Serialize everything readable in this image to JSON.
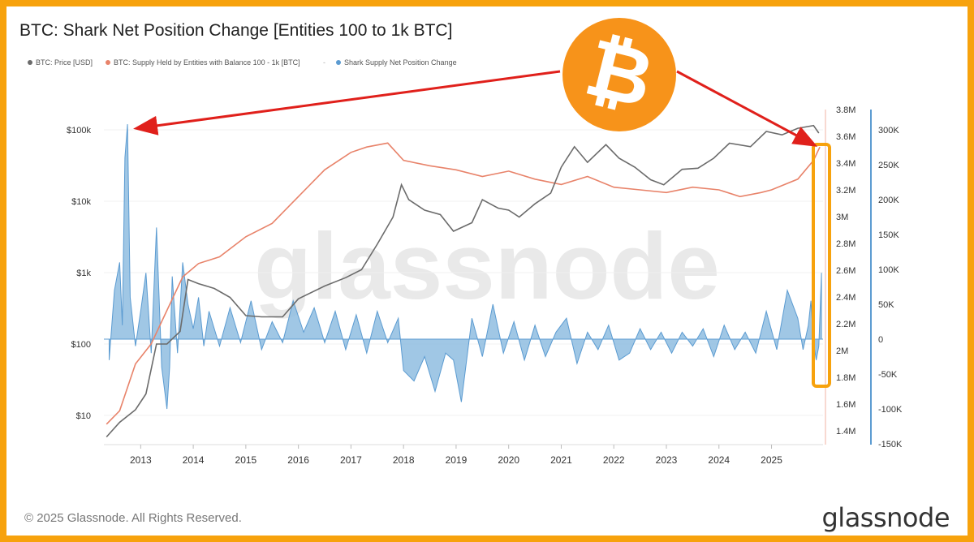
{
  "title": "BTC: Shark Net Position Change [Entities 100 to 1k BTC]",
  "legend": [
    {
      "label": "BTC: Price [USD]",
      "color": "#6b6b6b"
    },
    {
      "label": "BTC: Supply Held by Entities with Balance 100 - 1k [BTC]",
      "color": "#e8836a"
    },
    {
      "label": "-",
      "color": "#aaaaaa"
    },
    {
      "label": "Shark Supply Net Position Change",
      "color": "#5b9bd1"
    }
  ],
  "watermark": "glassnode",
  "footer": {
    "copyright": "© 2025 Glassnode. All Rights Reserved.",
    "brand": "glassnode"
  },
  "colors": {
    "frame": "#f7a20d",
    "price": "#6b6b6b",
    "supply": "#e8836a",
    "netpos": "#5b9bd1",
    "arrow": "#e0201b",
    "highlight": "#f7a20d",
    "coin": "#f7931a"
  },
  "icons": [
    "bitcoin-logo-icon"
  ],
  "chart_data": {
    "type": "line",
    "x_ticks": [
      "2013",
      "2014",
      "2015",
      "2016",
      "2017",
      "2018",
      "2019",
      "2020",
      "2021",
      "2022",
      "2023",
      "2024",
      "2025"
    ],
    "y_left_ticks": [
      "$100k",
      "$10k",
      "$1k",
      "$100",
      "$10"
    ],
    "y_mid_ticks": [
      "3.8M",
      "3.6M",
      "3.4M",
      "3.2M",
      "3M",
      "2.8M",
      "2.6M",
      "2.4M",
      "2.2M",
      "2M",
      "1.8M",
      "1.6M",
      "1.4M"
    ],
    "y_right_ticks": [
      "300K",
      "250K",
      "200K",
      "150K",
      "100K",
      "50K",
      "0",
      "-50K",
      "-100K",
      "-150K"
    ],
    "y_left_scale": "log",
    "y_left_range": [
      5,
      150000
    ],
    "y_mid_range": [
      1.35,
      3.8
    ],
    "y_right_range": [
      -150000,
      320000
    ],
    "series": [
      {
        "name": "BTC: Price [USD]",
        "axis": "left",
        "x": [
          2012.35,
          2012.6,
          2012.9,
          2013.1,
          2013.3,
          2013.5,
          2013.75,
          2013.9,
          2014.1,
          2014.4,
          2014.7,
          2015.0,
          2015.3,
          2015.7,
          2016.0,
          2016.5,
          2016.9,
          2017.2,
          2017.5,
          2017.8,
          2017.96,
          2018.1,
          2018.4,
          2018.7,
          2018.95,
          2019.3,
          2019.5,
          2019.8,
          2020.0,
          2020.2,
          2020.5,
          2020.8,
          2021.0,
          2021.25,
          2021.5,
          2021.85,
          2022.1,
          2022.4,
          2022.7,
          2022.95,
          2023.3,
          2023.6,
          2023.9,
          2024.2,
          2024.6,
          2024.9,
          2025.2,
          2025.5,
          2025.8,
          2025.9
        ],
        "values": [
          5,
          8,
          12,
          20,
          100,
          100,
          150,
          800,
          700,
          600,
          450,
          250,
          240,
          240,
          430,
          650,
          850,
          1100,
          2500,
          6000,
          17000,
          10500,
          7500,
          6500,
          3800,
          5000,
          10500,
          8000,
          7500,
          6000,
          9200,
          13000,
          30000,
          58000,
          35000,
          62000,
          40000,
          30000,
          20000,
          17000,
          28000,
          29000,
          40000,
          65000,
          58000,
          95000,
          85000,
          105000,
          115000,
          90000
        ]
      },
      {
        "name": "BTC: Supply Held by Entities with Balance 100 - 1k [BTC]",
        "axis": "middle",
        "x": [
          2012.35,
          2012.6,
          2012.9,
          2013.2,
          2013.5,
          2013.8,
          2014.1,
          2014.5,
          2015.0,
          2015.5,
          2016.0,
          2016.5,
          2017.0,
          2017.3,
          2017.7,
          2018.0,
          2018.5,
          2019.0,
          2019.5,
          2020.0,
          2020.5,
          2021.0,
          2021.5,
          2022.0,
          2022.5,
          2023.0,
          2023.5,
          2024.0,
          2024.4,
          2024.8,
          2025.0,
          2025.5,
          2025.8,
          2025.92
        ],
        "values": [
          1.45,
          1.55,
          1.9,
          2.05,
          2.3,
          2.55,
          2.65,
          2.7,
          2.85,
          2.95,
          3.15,
          3.35,
          3.48,
          3.52,
          3.55,
          3.42,
          3.38,
          3.35,
          3.3,
          3.34,
          3.28,
          3.24,
          3.3,
          3.22,
          3.2,
          3.18,
          3.22,
          3.2,
          3.15,
          3.18,
          3.2,
          3.28,
          3.42,
          3.52
        ]
      },
      {
        "name": "Shark Supply Net Position Change",
        "axis": "right",
        "type": "area",
        "x": [
          2012.4,
          2012.5,
          2012.6,
          2012.65,
          2012.7,
          2012.75,
          2012.8,
          2012.9,
          2013.0,
          2013.1,
          2013.2,
          2013.3,
          2013.4,
          2013.5,
          2013.55,
          2013.6,
          2013.7,
          2013.8,
          2013.9,
          2014.0,
          2014.1,
          2014.2,
          2014.3,
          2014.5,
          2014.7,
          2014.9,
          2015.1,
          2015.3,
          2015.5,
          2015.7,
          2015.9,
          2016.1,
          2016.3,
          2016.5,
          2016.7,
          2016.9,
          2017.1,
          2017.3,
          2017.5,
          2017.7,
          2017.9,
          2018.0,
          2018.2,
          2018.4,
          2018.6,
          2018.8,
          2018.95,
          2019.1,
          2019.3,
          2019.5,
          2019.7,
          2019.9,
          2020.1,
          2020.3,
          2020.5,
          2020.7,
          2020.9,
          2021.1,
          2021.3,
          2021.5,
          2021.7,
          2021.9,
          2022.1,
          2022.3,
          2022.5,
          2022.7,
          2022.9,
          2023.1,
          2023.3,
          2023.5,
          2023.7,
          2023.9,
          2024.1,
          2024.3,
          2024.5,
          2024.7,
          2024.9,
          2025.1,
          2025.3,
          2025.5,
          2025.6,
          2025.7,
          2025.75,
          2025.8,
          2025.85,
          2025.9,
          2025.95
        ],
        "values": [
          -30000,
          70000,
          110000,
          20000,
          260000,
          308000,
          60000,
          -10000,
          40000,
          95000,
          -20000,
          160000,
          -40000,
          -100000,
          -40000,
          90000,
          -20000,
          110000,
          50000,
          15000,
          60000,
          -10000,
          40000,
          -10000,
          45000,
          -5000,
          55000,
          -15000,
          25000,
          -5000,
          55000,
          10000,
          45000,
          -5000,
          40000,
          -15000,
          35000,
          -20000,
          40000,
          -5000,
          30000,
          -45000,
          -60000,
          -25000,
          -75000,
          -20000,
          -30000,
          -90000,
          30000,
          -25000,
          50000,
          -20000,
          25000,
          -30000,
          20000,
          -25000,
          10000,
          30000,
          -35000,
          10000,
          -15000,
          20000,
          -30000,
          -20000,
          15000,
          -15000,
          10000,
          -20000,
          10000,
          -10000,
          15000,
          -25000,
          20000,
          -15000,
          10000,
          -20000,
          40000,
          -15000,
          70000,
          30000,
          -15000,
          20000,
          55000,
          -5000,
          -30000,
          -10000,
          95000
        ]
      }
    ],
    "annotations": [
      "arrow from bitcoin logo to 2012 spike",
      "arrow from bitcoin logo to late-2025 highlight box"
    ]
  }
}
